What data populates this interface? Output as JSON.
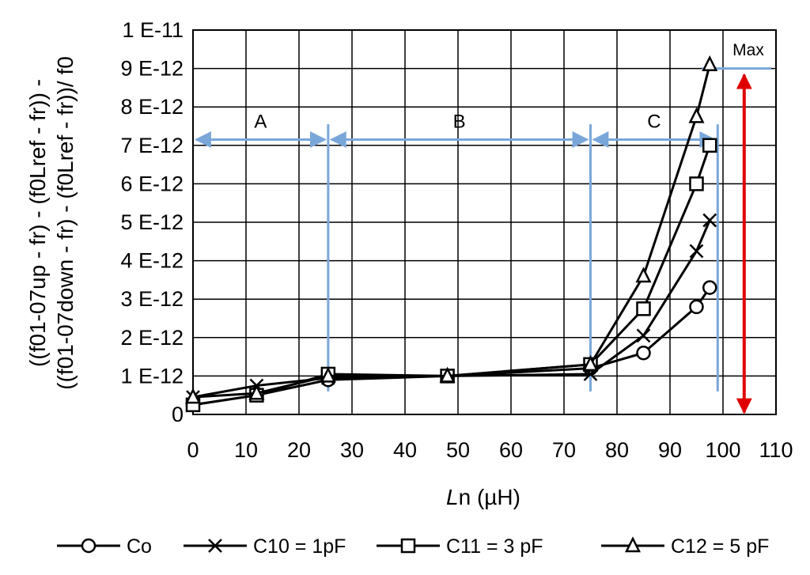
{
  "chart_data": {
    "type": "line",
    "xlabel_italic": "L",
    "xlabel_rest": "n (µH)",
    "ylabel_line1": "((f01-07up - fr) - (f0Lref - fr)) -",
    "ylabel_line2": "((f01-07down - fr) - (f0Lref - fr))/ f0",
    "xlim": [
      0,
      110
    ],
    "ylim": [
      0,
      1e-11
    ],
    "x_ticks": [
      0,
      10,
      20,
      30,
      40,
      50,
      60,
      70,
      80,
      90,
      100,
      110
    ],
    "x_tick_labels": [
      "0",
      "10",
      "20",
      "30",
      "40",
      "50",
      "60",
      "70",
      "80",
      "90",
      "100",
      "110"
    ],
    "y_ticks": [
      0,
      1e-12,
      2e-12,
      3e-12,
      4e-12,
      5e-12,
      6e-12,
      7e-12,
      8e-12,
      9e-12,
      1e-11
    ],
    "y_tick_labels": [
      "0",
      "1 E-12",
      "2 E-12",
      "3 E-12",
      "4 E-12",
      "5 E-12",
      "6 E-12",
      "7 E-12",
      "8 E-12",
      "9 E-12",
      "1 E-11"
    ],
    "grid": true,
    "legend_position": "bottom",
    "series": [
      {
        "name": "Co",
        "marker": "circle",
        "x": [
          0,
          12,
          25.5,
          48,
          75,
          85,
          95,
          97.5
        ],
        "y": [
          2.5e-13,
          5e-13,
          9e-13,
          1e-12,
          1.2e-12,
          1.6e-12,
          2.8e-12,
          3.3e-12
        ]
      },
      {
        "name": "C10 = 1pF",
        "marker": "x",
        "x": [
          0,
          12,
          25.5,
          48,
          75,
          85,
          95,
          97.5
        ],
        "y": [
          4.5e-13,
          7.5e-13,
          9.5e-13,
          1e-12,
          1.05e-12,
          2.05e-12,
          4.25e-12,
          5.05e-12
        ]
      },
      {
        "name": "C11 = 3 pF",
        "marker": "square",
        "x": [
          0,
          12,
          25.5,
          48,
          75,
          85,
          95,
          97.5
        ],
        "y": [
          2.5e-13,
          5e-13,
          1.05e-12,
          1e-12,
          1.3e-12,
          2.75e-12,
          6e-12,
          7e-12
        ]
      },
      {
        "name": "C12 = 5 pF",
        "marker": "triangle",
        "x": [
          0,
          12,
          25.5,
          48,
          75,
          85,
          95,
          97.5
        ],
        "y": [
          4.5e-13,
          5.5e-13,
          1e-12,
          1e-12,
          1.3e-12,
          3.6e-12,
          7.75e-12,
          9.1e-12
        ]
      }
    ],
    "zones": [
      {
        "label": "A",
        "from": 0,
        "to": 25.5
      },
      {
        "label": "B",
        "from": 25.5,
        "to": 75
      },
      {
        "label": "C",
        "from": 75,
        "to": 99
      }
    ],
    "zone_arrow_y": 7.15e-12,
    "zone_boundaries": [
      25.5,
      75,
      99
    ],
    "max_annotation": {
      "label": "Max",
      "x": 104,
      "y_from": 0,
      "y_to": 9e-12,
      "color": "#e00000"
    },
    "zone_color": "#7aa7d9"
  }
}
